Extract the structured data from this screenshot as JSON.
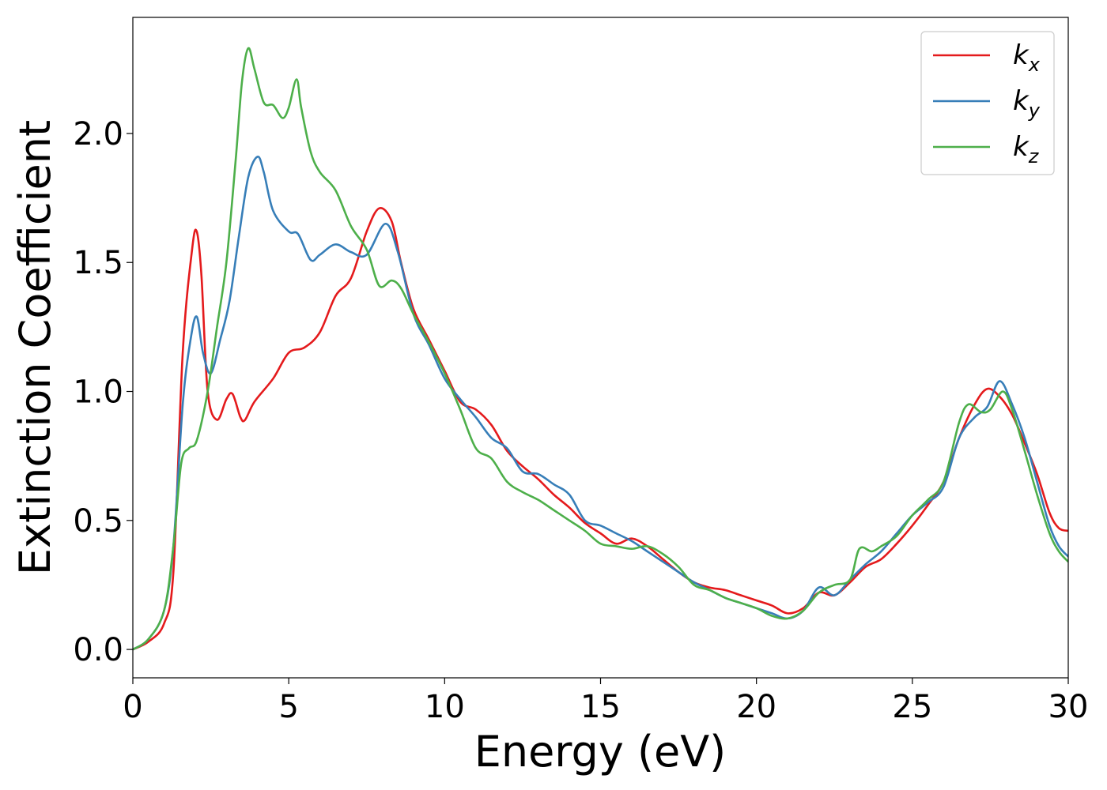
{
  "chart_data": {
    "type": "line",
    "xlabel": "Energy (eV)",
    "ylabel": "Extinction Coefficient",
    "xlim": [
      0,
      30
    ],
    "ylim": [
      -0.11,
      2.45
    ],
    "xticks": [
      0,
      5,
      10,
      15,
      20,
      25,
      30
    ],
    "xtick_labels": [
      "0",
      "5",
      "10",
      "15",
      "20",
      "25",
      "30"
    ],
    "yticks": [
      0.0,
      0.5,
      1.0,
      1.5,
      2.0
    ],
    "ytick_labels": [
      "0.0",
      "0.5",
      "1.0",
      "1.5",
      "2.0"
    ],
    "grid": false,
    "legend_position": "top-right",
    "series": [
      {
        "name": "k",
        "subscript": "x",
        "color": "#e41a1c",
        "x": [
          0,
          0.5,
          1.0,
          1.3,
          1.6,
          1.9,
          2.05,
          2.2,
          2.4,
          2.7,
          3.0,
          3.2,
          3.45,
          3.6,
          3.9,
          4.5,
          5.0,
          5.5,
          6.0,
          6.5,
          7.0,
          7.5,
          7.9,
          8.3,
          8.6,
          9.0,
          9.5,
          10.0,
          10.5,
          11.0,
          11.5,
          12.0,
          12.5,
          13.0,
          13.5,
          14.0,
          14.5,
          15.0,
          15.5,
          16.0,
          16.5,
          17.0,
          17.5,
          18.0,
          18.5,
          19.0,
          19.5,
          20.0,
          20.5,
          21.0,
          21.5,
          22.0,
          22.5,
          23.0,
          23.5,
          24.0,
          24.5,
          25.0,
          25.5,
          26.0,
          26.5,
          27.0,
          27.4,
          27.8,
          28.2,
          28.6,
          29.0,
          29.4,
          29.7,
          30.0
        ],
        "y": [
          0.0,
          0.03,
          0.1,
          0.3,
          1.15,
          1.55,
          1.62,
          1.45,
          1.0,
          0.89,
          0.97,
          0.99,
          0.9,
          0.89,
          0.96,
          1.05,
          1.15,
          1.17,
          1.23,
          1.37,
          1.44,
          1.62,
          1.71,
          1.66,
          1.5,
          1.32,
          1.2,
          1.08,
          0.96,
          0.93,
          0.87,
          0.77,
          0.71,
          0.66,
          0.6,
          0.55,
          0.49,
          0.45,
          0.41,
          0.43,
          0.4,
          0.35,
          0.3,
          0.26,
          0.24,
          0.23,
          0.21,
          0.19,
          0.17,
          0.14,
          0.16,
          0.22,
          0.21,
          0.26,
          0.32,
          0.35,
          0.41,
          0.48,
          0.56,
          0.65,
          0.82,
          0.95,
          1.01,
          0.98,
          0.91,
          0.8,
          0.68,
          0.53,
          0.47,
          0.46
        ]
      },
      {
        "name": "k",
        "subscript": "y",
        "color": "#377eb8",
        "x": [
          0,
          0.5,
          1.0,
          1.3,
          1.6,
          1.85,
          2.05,
          2.25,
          2.5,
          2.8,
          3.1,
          3.4,
          3.7,
          4.0,
          4.2,
          4.5,
          5.0,
          5.3,
          5.7,
          6.0,
          6.5,
          7.0,
          7.5,
          8.1,
          8.5,
          9.0,
          9.5,
          10.0,
          10.5,
          11.0,
          11.5,
          12.0,
          12.5,
          13.0,
          13.5,
          14.0,
          14.5,
          15.0,
          15.5,
          16.0,
          16.5,
          17.0,
          17.5,
          18.0,
          18.5,
          19.0,
          19.5,
          20.0,
          20.5,
          21.0,
          21.5,
          22.0,
          22.5,
          23.0,
          23.5,
          24.0,
          24.5,
          25.0,
          25.5,
          26.0,
          26.5,
          27.0,
          27.4,
          27.8,
          28.2,
          28.6,
          29.0,
          29.4,
          29.7,
          30.0
        ],
        "y": [
          0.0,
          0.04,
          0.15,
          0.4,
          0.95,
          1.2,
          1.29,
          1.15,
          1.07,
          1.2,
          1.35,
          1.6,
          1.83,
          1.91,
          1.85,
          1.7,
          1.62,
          1.61,
          1.51,
          1.53,
          1.57,
          1.54,
          1.53,
          1.65,
          1.54,
          1.3,
          1.18,
          1.05,
          0.97,
          0.9,
          0.82,
          0.78,
          0.69,
          0.68,
          0.64,
          0.6,
          0.5,
          0.48,
          0.45,
          0.42,
          0.38,
          0.34,
          0.3,
          0.26,
          0.23,
          0.2,
          0.18,
          0.16,
          0.14,
          0.12,
          0.15,
          0.24,
          0.21,
          0.27,
          0.33,
          0.38,
          0.45,
          0.52,
          0.57,
          0.63,
          0.82,
          0.9,
          0.94,
          1.04,
          0.95,
          0.82,
          0.65,
          0.48,
          0.4,
          0.36
        ]
      },
      {
        "name": "k",
        "subscript": "z",
        "color": "#4daf4a",
        "x": [
          0,
          0.5,
          1.0,
          1.3,
          1.55,
          1.8,
          2.05,
          2.4,
          2.7,
          3.0,
          3.3,
          3.5,
          3.7,
          3.9,
          4.2,
          4.5,
          4.8,
          5.0,
          5.25,
          5.4,
          5.7,
          6.0,
          6.5,
          7.0,
          7.5,
          7.9,
          8.3,
          8.6,
          9.0,
          9.5,
          10.0,
          10.5,
          11.0,
          11.5,
          12.0,
          12.5,
          13.0,
          13.5,
          14.0,
          14.5,
          15.0,
          15.5,
          16.0,
          16.5,
          17.0,
          17.5,
          18.0,
          18.5,
          19.0,
          19.5,
          20.0,
          20.5,
          21.0,
          21.5,
          22.0,
          22.5,
          23.0,
          23.3,
          23.7,
          24.0,
          24.5,
          25.0,
          25.5,
          26.0,
          26.5,
          26.8,
          27.2,
          27.5,
          27.9,
          28.2,
          28.6,
          29.0,
          29.4,
          29.7,
          30.0
        ],
        "y": [
          0.0,
          0.04,
          0.15,
          0.4,
          0.72,
          0.78,
          0.81,
          1.0,
          1.25,
          1.5,
          1.9,
          2.2,
          2.33,
          2.25,
          2.12,
          2.11,
          2.06,
          2.1,
          2.21,
          2.1,
          1.93,
          1.85,
          1.78,
          1.64,
          1.55,
          1.41,
          1.43,
          1.4,
          1.3,
          1.19,
          1.07,
          0.93,
          0.78,
          0.74,
          0.65,
          0.61,
          0.58,
          0.54,
          0.5,
          0.46,
          0.41,
          0.4,
          0.39,
          0.4,
          0.37,
          0.32,
          0.25,
          0.23,
          0.2,
          0.18,
          0.16,
          0.13,
          0.12,
          0.15,
          0.22,
          0.25,
          0.27,
          0.39,
          0.38,
          0.4,
          0.44,
          0.52,
          0.58,
          0.65,
          0.88,
          0.95,
          0.92,
          0.93,
          1.0,
          0.93,
          0.77,
          0.6,
          0.45,
          0.38,
          0.34
        ]
      }
    ]
  }
}
